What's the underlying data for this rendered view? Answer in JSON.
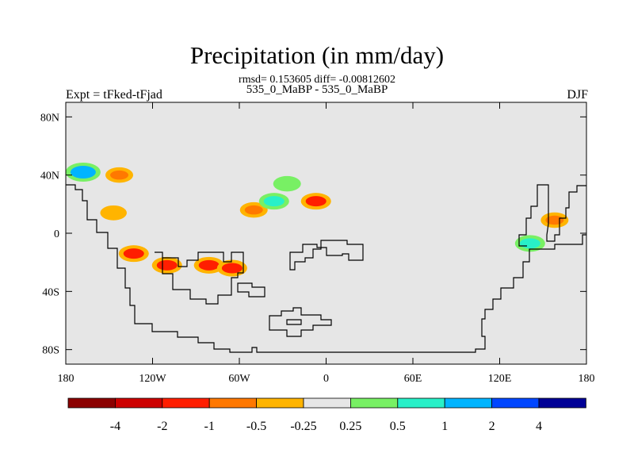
{
  "chart_data": {
    "type": "heatmap",
    "title": "Precipitation (in mm/day)",
    "stats_line": "rmsd= 0.153605 diff= -0.00812602",
    "subtitle": "535_0_MaBP - 535_0_MaBP",
    "left_label": "Expt = tFked-tFjad",
    "right_label": "DJF",
    "x_ticks": [
      "180",
      "120W",
      "60W",
      "0",
      "60E",
      "120E",
      "180"
    ],
    "x_tick_values": [
      -180,
      -120,
      -60,
      0,
      60,
      120,
      180
    ],
    "y_ticks": [
      "80N",
      "40N",
      "0",
      "40S",
      "80S"
    ],
    "y_tick_values": [
      80,
      40,
      0,
      -40,
      -80
    ],
    "xlim": [
      -180,
      180
    ],
    "ylim": [
      -90,
      90
    ],
    "colorbar": {
      "labels": [
        "-4",
        "-2",
        "-1",
        "-0.5",
        "-0.25",
        "0.25",
        "0.5",
        "1",
        "2",
        "4"
      ],
      "colors": [
        "#8b0000",
        "#cd0000",
        "#ff1e00",
        "#ff7800",
        "#ffb400",
        "#e6e6e6",
        "#78f064",
        "#28f0c8",
        "#00b4ff",
        "#0046ff",
        "#000096"
      ]
    },
    "background_color": "#e6e6e6",
    "anomalies": [
      {
        "lon": -168,
        "lat": 42,
        "value": 2
      },
      {
        "lon": -143,
        "lat": 40,
        "value": -0.5
      },
      {
        "lon": -147,
        "lat": 14,
        "value": -0.25
      },
      {
        "lon": -133,
        "lat": -14,
        "value": -1
      },
      {
        "lon": -110,
        "lat": -22,
        "value": -1
      },
      {
        "lon": -81,
        "lat": -22,
        "value": -1
      },
      {
        "lon": -65,
        "lat": -24,
        "value": -1
      },
      {
        "lon": -50,
        "lat": 16,
        "value": -0.5
      },
      {
        "lon": -36,
        "lat": 22,
        "value": 1
      },
      {
        "lon": -27,
        "lat": 34,
        "value": 0.5
      },
      {
        "lon": -7,
        "lat": 22,
        "value": -1
      },
      {
        "lon": 141,
        "lat": -7,
        "value": 1
      },
      {
        "lon": 158,
        "lat": 9,
        "value": -0.5
      }
    ]
  }
}
